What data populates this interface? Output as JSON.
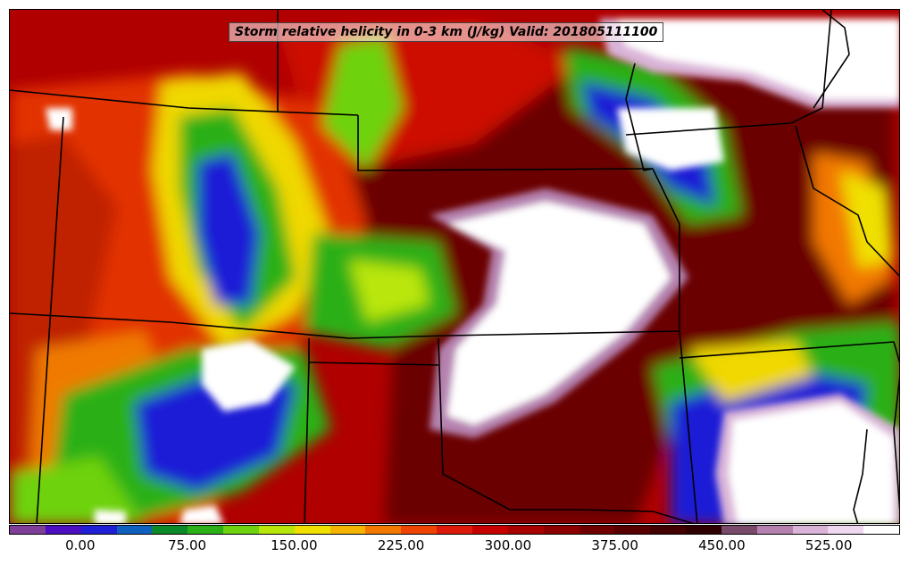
{
  "title": "Storm relative helicity in 0-3 km (J/kg) Valid: 201805111100",
  "colorbar": {
    "colors": [
      "#7f3f98",
      "#4b0fbf",
      "#1f1fd6",
      "#1060c0",
      "#0c8a2a",
      "#2bb018",
      "#6ed210",
      "#b9e60a",
      "#f0e000",
      "#f5b400",
      "#f27800",
      "#ee4400",
      "#e01a0a",
      "#c80000",
      "#a80000",
      "#8c0000",
      "#700000",
      "#580000",
      "#420000",
      "#300000",
      "#7a4a6a",
      "#b582b0",
      "#dab4d8",
      "#f0d8f0",
      "#ffffff"
    ],
    "tick_labels": [
      "0.00",
      "75.00",
      "150.00",
      "225.00",
      "300.00",
      "375.00",
      "450.00",
      "525.00"
    ]
  }
}
